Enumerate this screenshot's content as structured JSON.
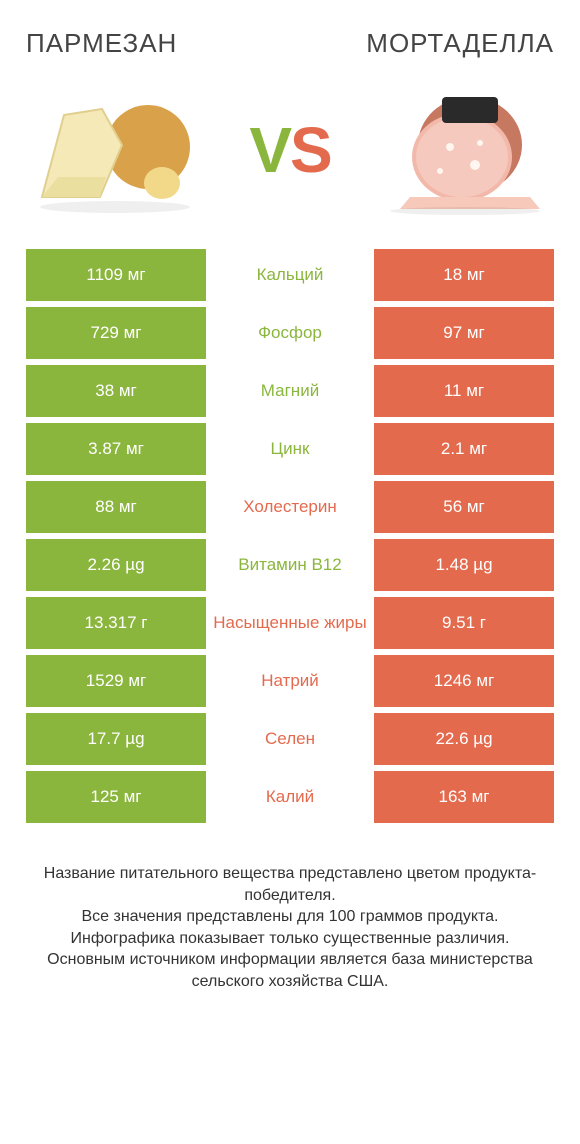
{
  "colors": {
    "left": "#8bb63e",
    "right": "#e46a4e",
    "text": "#333333",
    "white": "#ffffff"
  },
  "fontsizes": {
    "title": 26,
    "cell": 17,
    "footer": 16,
    "vs": 64
  },
  "header": {
    "left_title": "ПАРМЕЗАН",
    "right_title": "МОРТАДЕЛЛА",
    "vs_v": "V",
    "vs_s": "S"
  },
  "rows": [
    {
      "label": "Кальций",
      "left": "1109 мг",
      "right": "18 мг",
      "winner": "left"
    },
    {
      "label": "Фосфор",
      "left": "729 мг",
      "right": "97 мг",
      "winner": "left"
    },
    {
      "label": "Магний",
      "left": "38 мг",
      "right": "11 мг",
      "winner": "left"
    },
    {
      "label": "Цинк",
      "left": "3.87 мг",
      "right": "2.1 мг",
      "winner": "left"
    },
    {
      "label": "Холестерин",
      "left": "88 мг",
      "right": "56 мг",
      "winner": "right"
    },
    {
      "label": "Витамин B12",
      "left": "2.26 µg",
      "right": "1.48 µg",
      "winner": "left"
    },
    {
      "label": "Насыщенные жиры",
      "left": "13.317 г",
      "right": "9.51 г",
      "winner": "right"
    },
    {
      "label": "Натрий",
      "left": "1529 мг",
      "right": "1246 мг",
      "winner": "right"
    },
    {
      "label": "Селен",
      "left": "17.7 µg",
      "right": "22.6 µg",
      "winner": "right"
    },
    {
      "label": "Калий",
      "left": "125 мг",
      "right": "163 мг",
      "winner": "right"
    }
  ],
  "footer": "Название питательного вещества представлено цветом продукта-победителя.\nВсе значения представлены для 100 граммов продукта.\nИнфографика показывает только существенные различия.\nОсновным источником информации является база министерства сельского хозяйства США.",
  "images": {
    "left_alt": "parmesan-cheese",
    "right_alt": "mortadella-sausage"
  }
}
